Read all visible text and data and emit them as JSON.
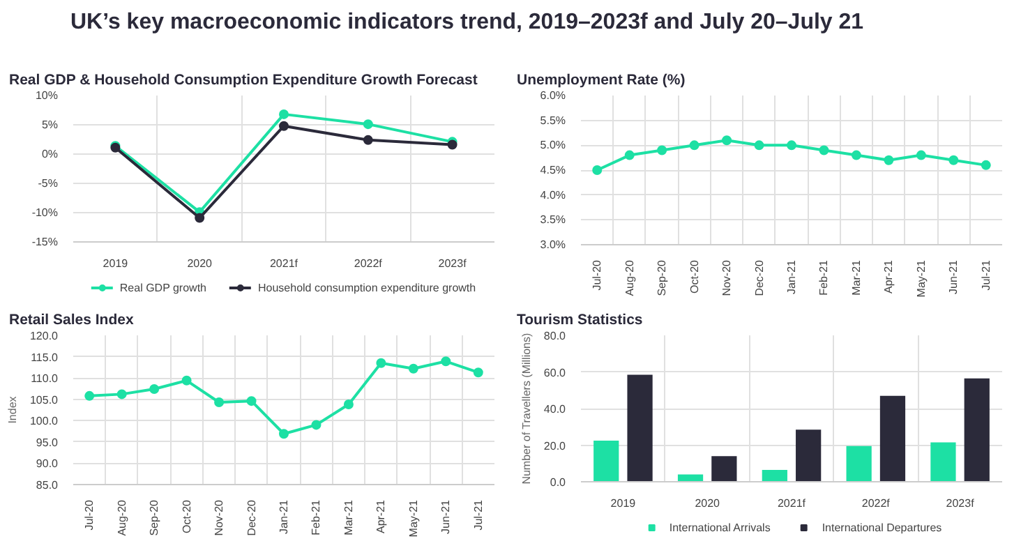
{
  "chart_data": [
    {
      "type": "other",
      "title": "UK’s key macroeconomic indicators trend, 2019–2023f and July 20–July 21"
    },
    {
      "type": "line",
      "title": "Real GDP & Household Consumption  Expenditure Growth Forecast",
      "categories": [
        "2019",
        "2020",
        "2021f",
        "2022f",
        "2023f"
      ],
      "series": [
        {
          "name": "Real GDP growth",
          "color": "#1de0a4",
          "values": [
            1.4,
            -9.9,
            6.8,
            5.1,
            2.1
          ]
        },
        {
          "name": "Household consumption expenditure growth",
          "color": "#2b2a3a",
          "values": [
            1.1,
            -10.9,
            4.8,
            2.4,
            1.6
          ]
        }
      ],
      "ylim": [
        -15,
        10
      ],
      "yticks": [
        {
          "value": -15,
          "label": "-15%"
        },
        {
          "value": -10,
          "label": "-10%"
        },
        {
          "value": -5,
          "label": "-5%"
        },
        {
          "value": 0,
          "label": "0%"
        },
        {
          "value": 5,
          "label": "5%"
        },
        {
          "value": 10,
          "label": "10%"
        }
      ],
      "grid": true,
      "legend": "bottom",
      "marker": "circle"
    },
    {
      "type": "line",
      "title": "Unemployment Rate (%)",
      "categories": [
        "Jul-20",
        "Aug-20",
        "Sep-20",
        "Oct-20",
        "Nov-20",
        "Dec-20",
        "Jan-21",
        "Feb-21",
        "Mar-21",
        "Apr-21",
        "May-21",
        "Jun-21",
        "Jul-21"
      ],
      "series": [
        {
          "color": "#1de0a4",
          "values": [
            4.5,
            4.8,
            4.9,
            5.0,
            5.1,
            5.0,
            5.0,
            4.9,
            4.8,
            4.7,
            4.8,
            4.7,
            4.6
          ]
        }
      ],
      "ylim": [
        3,
        6
      ],
      "yticks": [
        {
          "value": 3,
          "label": "3.0%"
        },
        {
          "value": 3.5,
          "label": "3.5%"
        },
        {
          "value": 4,
          "label": "4.0%"
        },
        {
          "value": 4.5,
          "label": "4.5%"
        },
        {
          "value": 5,
          "label": "5.0%"
        },
        {
          "value": 5.5,
          "label": "5.5%"
        },
        {
          "value": 6,
          "label": "6.0%"
        }
      ],
      "grid": true,
      "legend": false,
      "marker": "circle"
    },
    {
      "type": "line",
      "title": "Retail Sales Index",
      "ylabel": "Index",
      "categories": [
        "Jul-20",
        "Aug-20",
        "Sep-20",
        "Oct-20",
        "Nov-20",
        "Dec-20",
        "Jan-21",
        "Feb-21",
        "Mar-21",
        "Apr-21",
        "May-21",
        "Jun-21",
        "Jul-21"
      ],
      "series": [
        {
          "color": "#1de0a4",
          "values": [
            105.8,
            106.2,
            107.4,
            109.4,
            104.3,
            104.6,
            96.9,
            99.0,
            103.8,
            113.5,
            112.2,
            113.9,
            111.3
          ]
        }
      ],
      "ylim": [
        85,
        120
      ],
      "yticks": [
        {
          "value": 85,
          "label": "85.0"
        },
        {
          "value": 90,
          "label": "90.0"
        },
        {
          "value": 95,
          "label": "95.0"
        },
        {
          "value": 100,
          "label": "100.0"
        },
        {
          "value": 105,
          "label": "105.0"
        },
        {
          "value": 110,
          "label": "110.0"
        },
        {
          "value": 115,
          "label": "115.0"
        },
        {
          "value": 120,
          "label": "120.0"
        }
      ],
      "grid": true,
      "legend": false,
      "marker": "circle"
    },
    {
      "type": "bar",
      "title": "Tourism Statistics",
      "ylabel": "Number of Travellers (Millions)",
      "categories": [
        "2019",
        "2020",
        "2021f",
        "2022f",
        "2023f"
      ],
      "series": [
        {
          "name": "International Arrivals",
          "color": "#1de0a4",
          "values": [
            22.5,
            4.0,
            6.5,
            19.5,
            21.5
          ]
        },
        {
          "name": "International Departures",
          "color": "#2b2a3a",
          "values": [
            58.5,
            14.0,
            28.5,
            47.0,
            56.5
          ]
        }
      ],
      "ylim": [
        0,
        80
      ],
      "yticks": [
        {
          "value": 0,
          "label": "0.0"
        },
        {
          "value": 20,
          "label": "20.0"
        },
        {
          "value": 40,
          "label": "40.0"
        },
        {
          "value": 60,
          "label": "60.0"
        },
        {
          "value": 80,
          "label": "80.0"
        }
      ],
      "grid": true,
      "legend": "bottom"
    }
  ]
}
